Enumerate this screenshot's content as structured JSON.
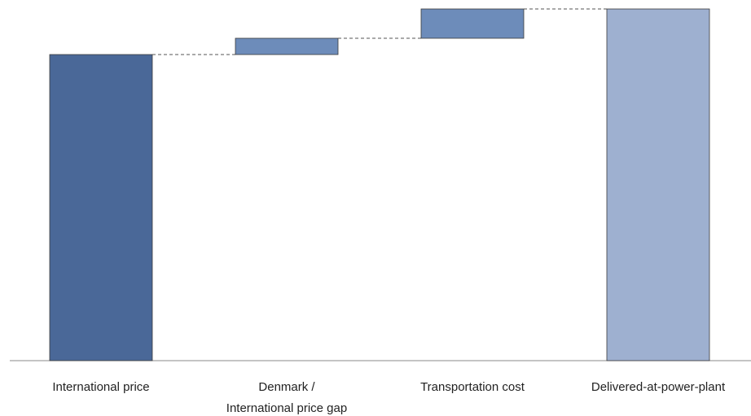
{
  "chart_data": {
    "type": "waterfall",
    "categories": [
      "International price",
      "Denmark /\nInternational price gap",
      "Transportation cost",
      "Delivered-at-power-plant"
    ],
    "values": [
      376,
      20,
      36,
      432
    ],
    "measures": [
      "absolute",
      "relative",
      "relative",
      "total"
    ],
    "colors": [
      "#4a6898",
      "#6d8cba",
      "#6d8cba",
      "#9eb0d0"
    ],
    "connectors": true
  }
}
